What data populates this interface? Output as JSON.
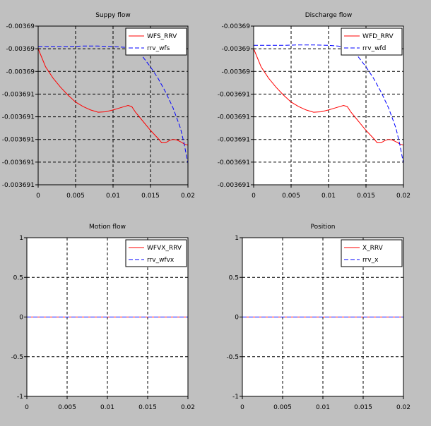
{
  "window": {
    "background": "#c0c0c0"
  },
  "chart_data": [
    {
      "type": "line",
      "title": "Suppy flow",
      "plot_bg": "#c0c0c0",
      "xlim": [
        0,
        0.02
      ],
      "ylim": [
        0,
        7
      ],
      "xticks": [
        0,
        0.005,
        0.01,
        0.015,
        0.02
      ],
      "xtick_labels": [
        "0",
        "0.005",
        "0.01",
        "0.015",
        "0.02"
      ],
      "yticks": [
        0,
        1,
        2,
        3,
        4,
        5,
        6,
        7
      ],
      "ytick_labels": [
        "-0.003691",
        "-0.003691",
        "-0.003691",
        "-0.003691",
        "-0.003691",
        "-0.00369",
        "-0.00369",
        "-0.00369"
      ],
      "grid": true,
      "legend_position": "top-right",
      "series": [
        {
          "name": "WFS_RRV",
          "color": "#ff0000",
          "dash": "solid",
          "x": [
            0,
            0.0005,
            0.001,
            0.002,
            0.003,
            0.004,
            0.005,
            0.006,
            0.007,
            0.008,
            0.009,
            0.01,
            0.011,
            0.012,
            0.0125,
            0.013,
            0.014,
            0.015,
            0.016,
            0.0165,
            0.017,
            0.0175,
            0.018,
            0.0185,
            0.019,
            0.0195,
            0.02
          ],
          "y": [
            6,
            5.6,
            5.2,
            4.7,
            4.3,
            3.95,
            3.65,
            3.45,
            3.3,
            3.2,
            3.22,
            3.3,
            3.4,
            3.5,
            3.45,
            3.2,
            2.8,
            2.4,
            2.05,
            1.85,
            1.85,
            1.95,
            2.0,
            1.98,
            1.9,
            1.8,
            1.75
          ]
        },
        {
          "name": "rrv_wfs",
          "color": "#0000ff",
          "dash": "dashed",
          "x": [
            0,
            0.002,
            0.004,
            0.006,
            0.008,
            0.01,
            0.012,
            0.0135,
            0.015,
            0.016,
            0.017,
            0.018,
            0.019,
            0.0195,
            0.02
          ],
          "y": [
            6.1,
            6.1,
            6.1,
            6.12,
            6.12,
            6.1,
            6.05,
            5.85,
            5.2,
            4.7,
            4.1,
            3.4,
            2.5,
            1.8,
            0.95
          ]
        }
      ]
    },
    {
      "type": "line",
      "title": "Discharge flow",
      "plot_bg": "#ffffff",
      "xlim": [
        0,
        0.02
      ],
      "ylim": [
        0,
        7
      ],
      "xticks": [
        0,
        0.005,
        0.01,
        0.015,
        0.02
      ],
      "xtick_labels": [
        "0",
        "0.005",
        "0.01",
        "0.015",
        "0.02"
      ],
      "yticks": [
        0,
        1,
        2,
        3,
        4,
        5,
        6,
        7
      ],
      "ytick_labels": [
        "-0.003691",
        "-0.003691",
        "-0.003691",
        "-0.003691",
        "-0.003691",
        "-0.00369",
        "-0.00369",
        "-0.00369"
      ],
      "grid": true,
      "legend_position": "top-right",
      "series": [
        {
          "name": "WFD_RRV",
          "color": "#ff0000",
          "dash": "solid",
          "x": [
            0,
            0.0005,
            0.001,
            0.002,
            0.003,
            0.004,
            0.005,
            0.006,
            0.007,
            0.008,
            0.009,
            0.01,
            0.011,
            0.012,
            0.0125,
            0.013,
            0.014,
            0.015,
            0.016,
            0.0165,
            0.017,
            0.0175,
            0.018,
            0.0185,
            0.019,
            0.0195,
            0.02
          ],
          "y": [
            6,
            5.6,
            5.2,
            4.7,
            4.3,
            3.95,
            3.65,
            3.45,
            3.3,
            3.2,
            3.22,
            3.3,
            3.4,
            3.5,
            3.45,
            3.2,
            2.8,
            2.4,
            2.05,
            1.85,
            1.85,
            1.95,
            2.0,
            1.98,
            1.9,
            1.8,
            1.75
          ]
        },
        {
          "name": "rrv_wfd",
          "color": "#0000ff",
          "dash": "dashed",
          "x": [
            0,
            0.002,
            0.004,
            0.006,
            0.008,
            0.01,
            0.012,
            0.0135,
            0.015,
            0.016,
            0.017,
            0.018,
            0.019,
            0.0195,
            0.02
          ],
          "y": [
            6.15,
            6.15,
            6.15,
            6.17,
            6.17,
            6.15,
            6.1,
            5.85,
            5.2,
            4.7,
            4.1,
            3.4,
            2.5,
            1.8,
            0.95
          ]
        }
      ]
    },
    {
      "type": "line",
      "title": "Motion flow",
      "plot_bg": "#ffffff",
      "xlim": [
        0,
        0.02
      ],
      "ylim": [
        -1,
        1
      ],
      "xticks": [
        0,
        0.005,
        0.01,
        0.015,
        0.02
      ],
      "xtick_labels": [
        "0",
        "0.005",
        "0.01",
        "0.015",
        "0.02"
      ],
      "yticks": [
        -1,
        -0.5,
        0,
        0.5,
        1
      ],
      "ytick_labels": [
        "-1",
        "-0.5",
        "0",
        "0.5",
        "1"
      ],
      "grid": true,
      "legend_position": "top-right",
      "series": [
        {
          "name": "WFVX_RRV",
          "color": "#ff0000",
          "dash": "solid",
          "x": [
            0,
            0.02
          ],
          "y": [
            0,
            0
          ]
        },
        {
          "name": "rrv_wfvx",
          "color": "#0000ff",
          "dash": "dashed",
          "x": [
            0,
            0.02
          ],
          "y": [
            0,
            0
          ]
        }
      ]
    },
    {
      "type": "line",
      "title": "Position",
      "plot_bg": "#ffffff",
      "xlim": [
        0,
        0.02
      ],
      "ylim": [
        -1,
        1
      ],
      "xticks": [
        0,
        0.005,
        0.01,
        0.015,
        0.02
      ],
      "xtick_labels": [
        "0",
        "0.005",
        "0.01",
        "0.015",
        "0.02"
      ],
      "yticks": [
        -1,
        -0.5,
        0,
        0.5,
        1
      ],
      "ytick_labels": [
        "-1",
        "-0.5",
        "0",
        "0.5",
        "1"
      ],
      "grid": true,
      "legend_position": "top-right",
      "series": [
        {
          "name": "X_RRV",
          "color": "#ff0000",
          "dash": "solid",
          "x": [
            0,
            0.02
          ],
          "y": [
            0,
            0
          ]
        },
        {
          "name": "rrv_x",
          "color": "#0000ff",
          "dash": "dashed",
          "x": [
            0,
            0.02
          ],
          "y": [
            0,
            0
          ]
        }
      ]
    }
  ]
}
